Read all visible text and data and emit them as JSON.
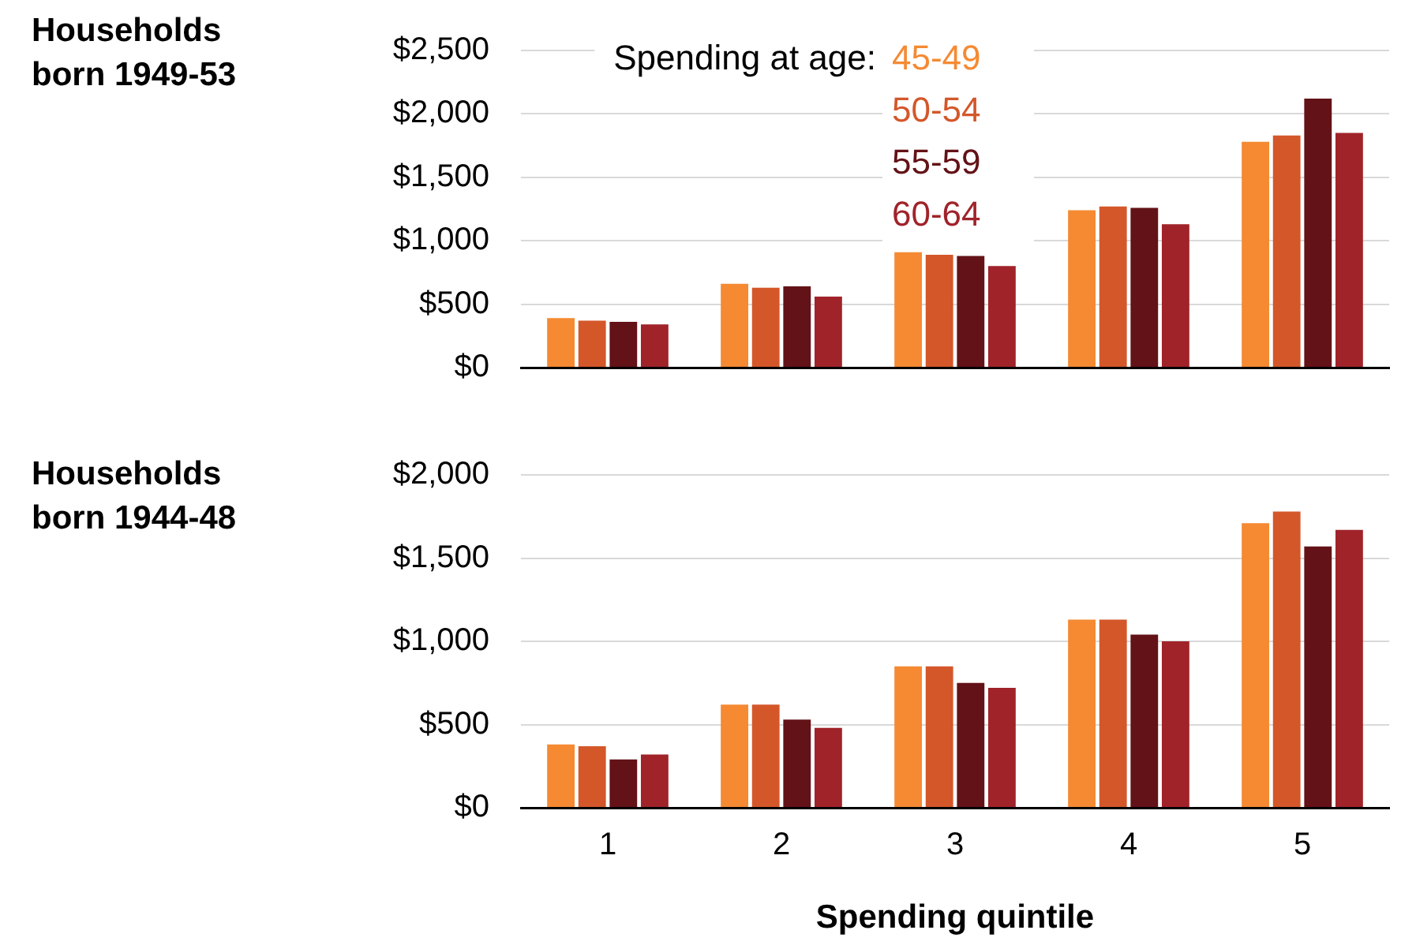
{
  "chart_data": [
    {
      "type": "bar",
      "title": "Households born 1949-53",
      "categories": [
        "1",
        "2",
        "3",
        "4",
        "5"
      ],
      "legend": "top",
      "legend_title": "Spending at age:",
      "grid": "y",
      "tick_labels": "y",
      "ylim": [
        0,
        2500
      ],
      "yticks": [
        {
          "value": 0,
          "label": "$0"
        },
        {
          "value": 500,
          "label": "$500"
        },
        {
          "value": 1000,
          "label": "$1,000"
        },
        {
          "value": 1500,
          "label": "$1,500"
        },
        {
          "value": 2000,
          "label": "$2,000"
        },
        {
          "value": 2500,
          "label": "$2,500"
        }
      ],
      "series": [
        {
          "name": "45-49",
          "color": "#f58a33",
          "values": [
            390,
            660,
            910,
            1240,
            1780
          ]
        },
        {
          "name": "50-54",
          "color": "#d4572a",
          "values": [
            370,
            630,
            890,
            1270,
            1830
          ]
        },
        {
          "name": "55-59",
          "color": "#631217",
          "values": [
            360,
            640,
            880,
            1260,
            2120
          ]
        },
        {
          "name": "60-64",
          "color": "#a0232a",
          "values": [
            340,
            560,
            800,
            1130,
            1850
          ]
        }
      ]
    },
    {
      "type": "bar",
      "title": "Households born 1944-48",
      "categories": [
        "1",
        "2",
        "3",
        "4",
        "5"
      ],
      "xlabel": "Spending quintile",
      "grid": "y",
      "ylim": [
        0,
        2000
      ],
      "yticks": [
        {
          "value": 0,
          "label": "$0"
        },
        {
          "value": 500,
          "label": "$500"
        },
        {
          "value": 1000,
          "label": "$1,000"
        },
        {
          "value": 1500,
          "label": "$1,500"
        },
        {
          "value": 2000,
          "label": "$2,000"
        }
      ],
      "series": [
        {
          "color": "#f58a33",
          "values": [
            380,
            620,
            850,
            1130,
            1710
          ]
        },
        {
          "color": "#d4572a",
          "values": [
            370,
            620,
            850,
            1130,
            1780
          ]
        },
        {
          "color": "#631217",
          "values": [
            290,
            530,
            750,
            1040,
            1570
          ]
        },
        {
          "color": "#a0232a",
          "values": [
            320,
            480,
            720,
            1000,
            1670
          ]
        }
      ]
    }
  ]
}
